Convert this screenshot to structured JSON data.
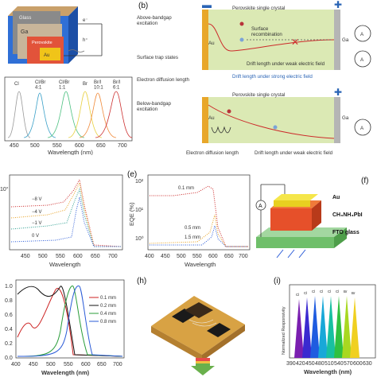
{
  "panel_letters": {
    "b": "(b)",
    "e": "(e)",
    "f": "(f)",
    "h": "(h)",
    "i": "(i)"
  },
  "panel_a": {
    "layers": {
      "glass": "Glass",
      "ga": "Ga",
      "perovskite": "Perovskite",
      "au": "Au"
    },
    "charges": {
      "electron": "e⁻",
      "hole": "h⁺"
    }
  },
  "spectra_panel": {
    "peak_labels": [
      "Cl",
      "Cl/Br\n4:1",
      "Cl/Br\n1:1",
      "Br",
      "Br/I\n10:1",
      "Br/I\n6:1"
    ],
    "xticks": [
      "450",
      "500",
      "550",
      "600",
      "650",
      "700"
    ],
    "xlabel": "Wavelength (nm)"
  },
  "panel_b": {
    "top": {
      "title": "Perovskite single crystal",
      "excitation": "Above-bandgap\nexcitation",
      "surface_recombination": "Surface\nrecombination",
      "surface_trap_states": "Surface trap states",
      "electron_diffusion": "Electron diffusion length",
      "drift_weak": "Drift length under weak electric field",
      "drift_strong": "Drift length under strong electric field",
      "au": "Au",
      "ga": "Ga",
      "meter": "A"
    },
    "bottom": {
      "title": "Perovskite single crystal",
      "excitation": "Below-bandgap\nexcitation",
      "electron_diffusion": "Electron diffusion length",
      "drift_weak": "Drift length under weak electric field",
      "au": "Au",
      "ga": "Ga",
      "meter": "A"
    }
  },
  "panel_d": {
    "ytick": "10°",
    "xticks": [
      "450",
      "500",
      "550",
      "600",
      "650",
      "700"
    ],
    "xlabel": "Wavelength",
    "series_labels": [
      "−8 V",
      "−4 V",
      "−1 V",
      "0 V"
    ]
  },
  "panel_e": {
    "ylabel": "EQE (%)",
    "yticks": [
      "10²",
      "10¹",
      "10⁰"
    ],
    "xticks": [
      "400",
      "450",
      "500",
      "550",
      "600",
      "650",
      "700"
    ],
    "xlabel": "Wavelength",
    "series_labels": [
      "0.1 mm",
      "0.5 mm",
      "1.5 mm"
    ]
  },
  "panel_f": {
    "au": "Au",
    "perovskite": "CH₃NH₃PbI",
    "fto": "FTO glass",
    "meter": "A"
  },
  "panel_g": {
    "yticks": [
      "1.0",
      "0.8",
      "0.6",
      "0.4",
      "0.2",
      "0.0"
    ],
    "xticks": [
      "400",
      "450",
      "500",
      "550",
      "600",
      "650",
      "700"
    ],
    "xlabel": "Wavelength (nm)",
    "legend": [
      "0.1 mm",
      "0.2 mm",
      "0.4 mm",
      "0.8 mm"
    ],
    "colors": [
      "#cc2222",
      "#111111",
      "#2a9d3a",
      "#2a5bd7"
    ]
  },
  "panel_i": {
    "ylabel": "Normalized Responsivity",
    "xticks": [
      "390",
      "420",
      "450",
      "480",
      "510",
      "540",
      "570",
      "600",
      "630"
    ],
    "xlabel": "Wavelength (nm)",
    "peak_labels": [
      "Cl",
      "Cl",
      "Cl",
      "Cl",
      "Cl",
      "Cl",
      "Br",
      "Br"
    ]
  }
}
